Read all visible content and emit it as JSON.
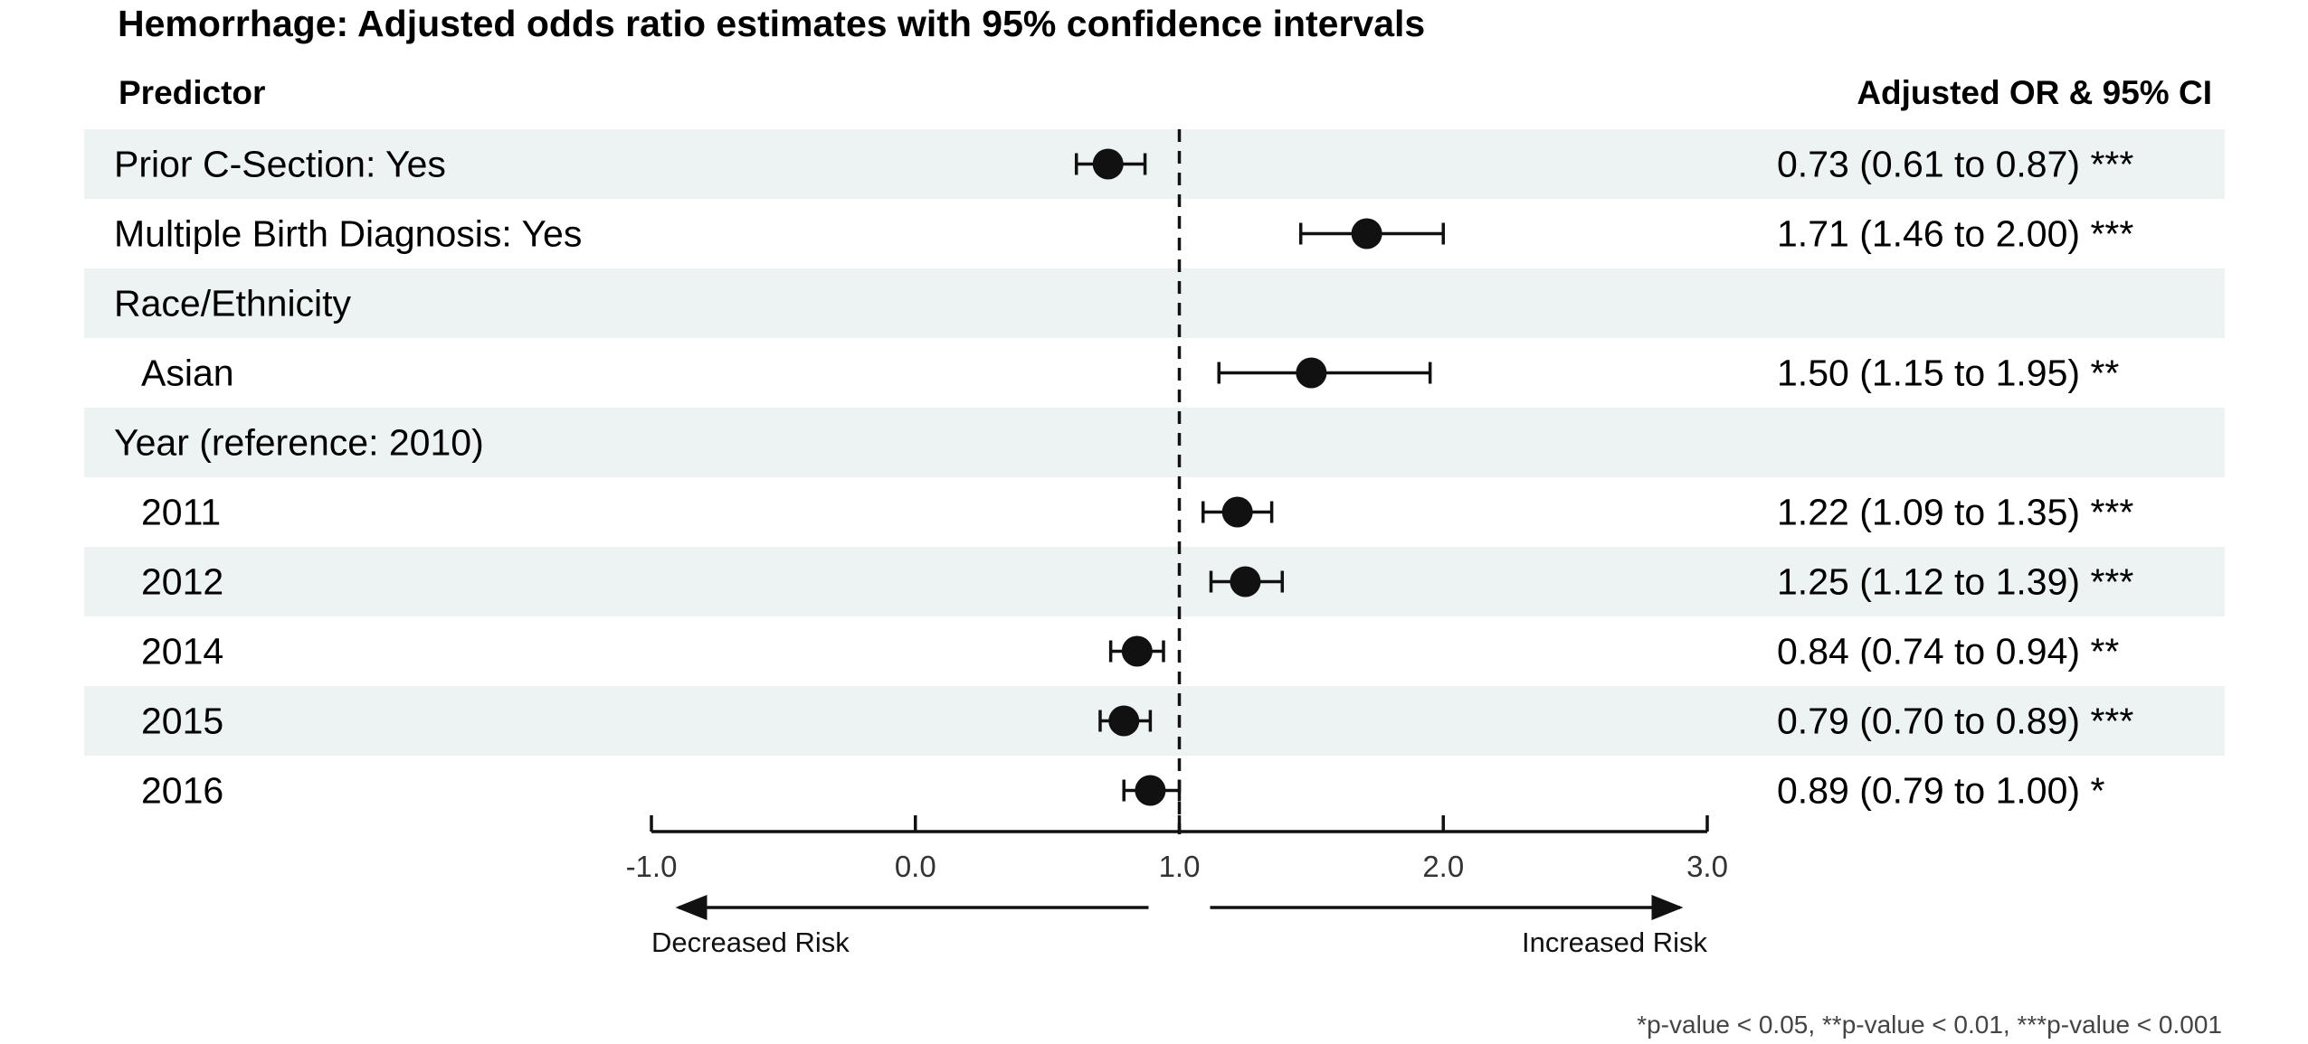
{
  "chart_data": {
    "type": "forest",
    "title": "Hemorrhage: Adjusted odds ratio estimates with 95% confidence intervals",
    "column_headers": {
      "predictor": "Predictor",
      "estimate": "Adjusted OR & 95% CI"
    },
    "rows": [
      {
        "label": "Prior C-Section: Yes",
        "indent": false,
        "or": 0.73,
        "lower": 0.61,
        "upper": 0.87,
        "text": "0.73 (0.61 to 0.87) ***",
        "shaded": true
      },
      {
        "label": "Multiple Birth Diagnosis: Yes",
        "indent": false,
        "or": 1.71,
        "lower": 1.46,
        "upper": 2.0,
        "text": "1.71 (1.46 to 2.00) ***",
        "shaded": false
      },
      {
        "label": "Race/Ethnicity",
        "indent": false,
        "or": null,
        "lower": null,
        "upper": null,
        "text": "",
        "shaded": true
      },
      {
        "label": "Asian",
        "indent": true,
        "or": 1.5,
        "lower": 1.15,
        "upper": 1.95,
        "text": "1.50 (1.15 to 1.95) **",
        "shaded": false
      },
      {
        "label": "Year (reference: 2010)",
        "indent": false,
        "or": null,
        "lower": null,
        "upper": null,
        "text": "",
        "shaded": true
      },
      {
        "label": "2011",
        "indent": true,
        "or": 1.22,
        "lower": 1.09,
        "upper": 1.35,
        "text": "1.22 (1.09 to 1.35) ***",
        "shaded": false
      },
      {
        "label": "2012",
        "indent": true,
        "or": 1.25,
        "lower": 1.12,
        "upper": 1.39,
        "text": "1.25 (1.12 to 1.39) ***",
        "shaded": true
      },
      {
        "label": "2014",
        "indent": true,
        "or": 0.84,
        "lower": 0.74,
        "upper": 0.94,
        "text": "0.84 (0.74 to 0.94) **",
        "shaded": false
      },
      {
        "label": "2015",
        "indent": true,
        "or": 0.79,
        "lower": 0.7,
        "upper": 0.89,
        "text": "0.79 (0.70 to 0.89) ***",
        "shaded": true
      },
      {
        "label": "2016",
        "indent": true,
        "or": 0.89,
        "lower": 0.79,
        "upper": 1.0,
        "text": "0.89 (0.79 to 1.00) *",
        "shaded": false
      }
    ],
    "x_ticks": [
      -1.0,
      0.0,
      1.0,
      2.0,
      3.0
    ],
    "x_tick_labels": [
      "-1.0",
      "0.0",
      "1.0",
      "2.0",
      "3.0"
    ],
    "xlim": [
      -1.0,
      3.0
    ],
    "reference_line": 1.0,
    "direction_labels": {
      "left": "Decreased Risk",
      "right": "Increased Risk"
    },
    "footnote": "*p-value < 0.05, **p-value < 0.01, ***p-value < 0.001",
    "colors": {
      "stripe": "#edf3f2",
      "marker": "#111111"
    }
  }
}
